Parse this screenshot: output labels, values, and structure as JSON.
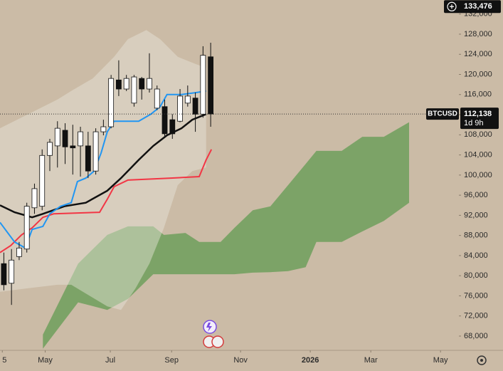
{
  "chart_data": {
    "type": "candlestick",
    "candles": {
      "open": [
        82400,
        78500,
        83800,
        85300,
        93500,
        93800,
        103900,
        105800,
        108900,
        105800,
        105800,
        105800,
        100800,
        108600,
        109600,
        118900,
        117100,
        114300,
        119200,
        117100,
        113300,
        113600,
        111000,
        110700,
        114300,
        115300,
        112100,
        123500
      ],
      "high": [
        84600,
        85300,
        86700,
        94500,
        98300,
        105100,
        107200,
        110700,
        110300,
        110000,
        109600,
        108600,
        109300,
        111000,
        119900,
        122800,
        119900,
        119900,
        119500,
        124200,
        117800,
        115000,
        112100,
        117100,
        117800,
        116400,
        125600,
        126300
      ],
      "low": [
        77100,
        74200,
        83100,
        84600,
        92300,
        93000,
        100800,
        101500,
        102200,
        100100,
        99700,
        99400,
        100100,
        107900,
        109300,
        115700,
        116700,
        113600,
        115000,
        116400,
        112900,
        107600,
        107200,
        110500,
        113600,
        108600,
        111400,
        109600
      ],
      "close": [
        78200,
        83100,
        85500,
        93800,
        97300,
        103900,
        106500,
        109300,
        105600,
        105400,
        108600,
        100800,
        108600,
        109600,
        119200,
        117100,
        119200,
        119500,
        117100,
        119200,
        117100,
        108200,
        108200,
        115700,
        115700,
        112100,
        123800,
        112138
      ],
      "up_color": "#ffffff",
      "down_color": "#111111"
    },
    "cloud": {
      "color": "#6e9f5c",
      "x": [
        5.1,
        9.7,
        13.5,
        16.2,
        19.5,
        20.9,
        23.7,
        25.5,
        28.3,
        30.1,
        32.5,
        34.8,
        37.1,
        39.4,
        40.8,
        44.1,
        46.8,
        49.6,
        52.9
      ],
      "top": [
        68300,
        82400,
        88100,
        89800,
        89800,
        88100,
        88500,
        86700,
        86700,
        89500,
        93000,
        93800,
        98000,
        102200,
        104800,
        104800,
        107600,
        107600,
        110500
      ],
      "bottom": [
        65500,
        74700,
        73200,
        75400,
        80300,
        80300,
        80300,
        80300,
        80300,
        80300,
        80600,
        80700,
        80900,
        81700,
        86700,
        86700,
        88800,
        90900,
        94500
      ]
    },
    "band": {
      "color": "#e9e6dc",
      "upper": {
        "x": [
          -0.5,
          3.2,
          7,
          8.8,
          11.6,
          14.4,
          16.2,
          18.6,
          20.4,
          22.7,
          25,
          26.4
        ],
        "values": [
          109300,
          112100,
          115000,
          116700,
          119200,
          123500,
          127000,
          128800,
          127000,
          123500,
          122100,
          121300
        ]
      },
      "lower": {
        "x": [
          -0.5,
          3.2,
          7,
          8.8,
          13.5,
          15.3,
          17.2,
          19,
          20.9,
          22.7,
          24.6,
          26.4
        ],
        "values": [
          76800,
          77500,
          78200,
          78200,
          73900,
          73200,
          77500,
          82400,
          89500,
          98000,
          100800,
          101500
        ]
      }
    },
    "lines": [
      {
        "color": "#f23645",
        "x": [
          -0.5,
          0.9,
          2.3,
          3.7,
          5.1,
          6.5,
          12.5,
          13.5,
          14.4,
          16.2,
          21.8,
          25.5,
          26.4,
          27.1
        ],
        "values": [
          84600,
          86000,
          88100,
          89500,
          91600,
          92300,
          92600,
          95200,
          97700,
          99000,
          99400,
          99700,
          103000,
          105100
        ]
      },
      {
        "color": "#111111",
        "x": [
          -0.5,
          1.4,
          3.7,
          5.1,
          7.9,
          10.7,
          13.5,
          15.3,
          17.6,
          19.5,
          21.3,
          23.2,
          24.6,
          26.4
        ],
        "values": [
          94000,
          92600,
          91600,
          92300,
          93800,
          94500,
          96900,
          99400,
          103000,
          105800,
          107900,
          109300,
          111000,
          112100
        ]
      },
      {
        "color": "#2196f3",
        "x": [
          -0.5,
          1.4,
          2.8,
          3.7,
          5.1,
          6,
          7.4,
          8.8,
          9.6,
          10.7,
          11.8,
          12.7,
          13.5,
          14.4,
          15.8,
          17.6,
          19.2,
          20.4,
          21.3,
          23.2,
          25.1,
          26.4
        ],
        "values": [
          90600,
          86700,
          85500,
          89200,
          89800,
          92300,
          93800,
          94500,
          98700,
          99400,
          100800,
          104400,
          108600,
          110700,
          110700,
          110700,
          112100,
          113600,
          116000,
          116000,
          116400,
          116700
        ]
      }
    ],
    "xlim": [
      -0.5,
      59.4
    ],
    "xticks": [
      {
        "value": -0.2,
        "label": "5"
      },
      {
        "value": 5.4,
        "label": "May"
      },
      {
        "value": 13.9,
        "label": "Jul"
      },
      {
        "value": 21.9,
        "label": "Sep"
      },
      {
        "value": 30.9,
        "label": "Nov"
      },
      {
        "value": 40,
        "label": "2026"
      },
      {
        "value": 47.9,
        "label": "Mar"
      },
      {
        "value": 57,
        "label": "May"
      }
    ],
    "ylim": [
      65450,
      134790
    ],
    "yticks": [
      {
        "value": 68000,
        "label": "68,000"
      },
      {
        "value": 72000,
        "label": "72,000"
      },
      {
        "value": 76000,
        "label": "76,000"
      },
      {
        "value": 80000,
        "label": "80,000"
      },
      {
        "value": 84000,
        "label": "84,000"
      },
      {
        "value": 88000,
        "label": "88,000"
      },
      {
        "value": 92000,
        "label": "92,000"
      },
      {
        "value": 96000,
        "label": "96,000"
      },
      {
        "value": 100000,
        "label": "100,000"
      },
      {
        "value": 104000,
        "label": "104,000"
      },
      {
        "value": 108000,
        "label": "108,000"
      },
      {
        "value": 112000,
        "label": "112,000"
      },
      {
        "value": 116000,
        "label": "116,000"
      },
      {
        "value": 120000,
        "label": "120,000"
      },
      {
        "value": 124000,
        "label": "124,000"
      },
      {
        "value": 128000,
        "label": "128,000"
      },
      {
        "value": 132000,
        "label": "132,000"
      }
    ],
    "last": {
      "symbol": "BTCUSD",
      "price": 112138,
      "price_label": "112,138",
      "countdown": "1d 9h"
    },
    "crosshair": {
      "value": 133476,
      "label": "133,476"
    }
  }
}
